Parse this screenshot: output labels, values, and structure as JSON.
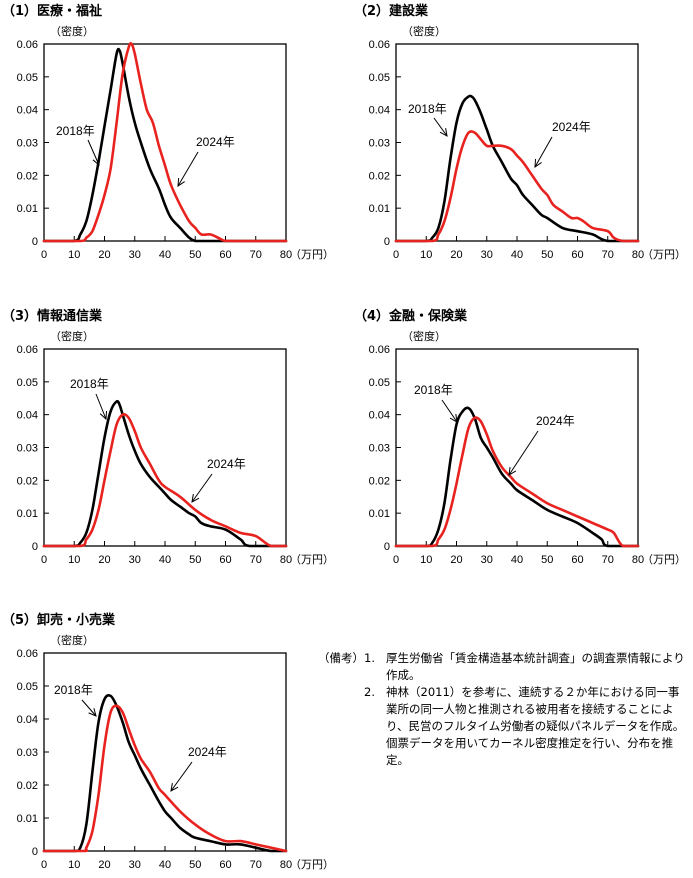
{
  "colors": {
    "y2018": "#000000",
    "y2024": "#e8231f"
  },
  "notes": {
    "label": "（備考）",
    "items": [
      {
        "num": "1.",
        "text": "厚生労働省「賃金構造基本統計調査」の調査票情報により作成。"
      },
      {
        "num": "2.",
        "text": "神林（2011）を参考に、連続する２か年における同一事業所の同一人物と推測される被用者を接続することにより、民営のフルタイム労働者の疑似パネルデータを作成。個票データを用いてカーネル密度推定を行い、分布を推定。"
      }
    ]
  },
  "chart_data": [
    {
      "type": "line",
      "title": "（1）医療・福祉",
      "ylabel": "（密度）",
      "xunit": "（万円）",
      "xlim": [
        0,
        80
      ],
      "ylim": [
        0,
        0.06
      ],
      "xticks": [
        "0",
        "10",
        "20",
        "30",
        "40",
        "50",
        "60",
        "70",
        "80"
      ],
      "yticks": [
        "0",
        "0.01",
        "0.02",
        "0.03",
        "0.04",
        "0.05",
        "0.06"
      ],
      "annotations": [
        "2018年",
        "2024年"
      ],
      "series": [
        {
          "name": "2018年",
          "x": [
            0,
            10,
            12,
            14,
            16,
            18,
            20,
            22,
            24,
            25,
            26,
            28,
            30,
            32,
            35,
            38,
            40,
            42,
            45,
            48,
            50,
            52,
            55,
            60,
            65,
            70,
            80
          ],
          "y": [
            0,
            0,
            0.002,
            0.006,
            0.014,
            0.024,
            0.035,
            0.046,
            0.057,
            0.058,
            0.054,
            0.044,
            0.036,
            0.03,
            0.022,
            0.016,
            0.011,
            0.007,
            0.004,
            0.001,
            0,
            0,
            0,
            0,
            0,
            0,
            0
          ]
        },
        {
          "name": "2024年",
          "x": [
            0,
            12,
            14,
            16,
            18,
            20,
            22,
            24,
            26,
            28,
            29,
            30,
            32,
            34,
            36,
            38,
            40,
            42,
            45,
            48,
            50,
            52,
            55,
            58,
            60,
            65,
            70,
            80
          ],
          "y": [
            0,
            0,
            0.001,
            0.003,
            0.008,
            0.014,
            0.022,
            0.036,
            0.051,
            0.059,
            0.06,
            0.057,
            0.048,
            0.04,
            0.036,
            0.029,
            0.023,
            0.017,
            0.011,
            0.006,
            0.004,
            0.002,
            0.002,
            0.0008,
            0,
            0,
            0,
            0
          ]
        }
      ]
    },
    {
      "type": "line",
      "title": "（2）建設業",
      "ylabel": "（密度）",
      "xunit": "（万円）",
      "xlim": [
        0,
        80
      ],
      "ylim": [
        0,
        0.06
      ],
      "xticks": [
        "0",
        "10",
        "20",
        "30",
        "40",
        "50",
        "60",
        "70",
        "80"
      ],
      "yticks": [
        "0",
        "0.01",
        "0.02",
        "0.03",
        "0.04",
        "0.05",
        "0.06"
      ],
      "annotations": [
        "2018年",
        "2024年"
      ],
      "series": [
        {
          "name": "2018年",
          "x": [
            0,
            10,
            12,
            14,
            16,
            18,
            20,
            22,
            24,
            25,
            26,
            28,
            30,
            32,
            35,
            38,
            40,
            42,
            45,
            48,
            50,
            55,
            60,
            65,
            70,
            80
          ],
          "y": [
            0,
            0,
            0.001,
            0.004,
            0.012,
            0.025,
            0.036,
            0.042,
            0.044,
            0.044,
            0.043,
            0.039,
            0.034,
            0.029,
            0.024,
            0.019,
            0.017,
            0.014,
            0.011,
            0.008,
            0.007,
            0.004,
            0.003,
            0.002,
            0,
            0
          ]
        },
        {
          "name": "2024年",
          "x": [
            0,
            12,
            14,
            16,
            18,
            20,
            22,
            24,
            26,
            28,
            30,
            32,
            35,
            38,
            40,
            42,
            45,
            48,
            50,
            52,
            55,
            58,
            60,
            62,
            65,
            70,
            72,
            75,
            80
          ],
          "y": [
            0,
            0,
            0.002,
            0.006,
            0.013,
            0.022,
            0.029,
            0.033,
            0.033,
            0.031,
            0.029,
            0.029,
            0.029,
            0.028,
            0.026,
            0.024,
            0.02,
            0.016,
            0.014,
            0.011,
            0.009,
            0.007,
            0.007,
            0.006,
            0.004,
            0.003,
            0.001,
            0,
            0
          ]
        }
      ]
    },
    {
      "type": "line",
      "title": "（3）情報通信業",
      "ylabel": "（密度）",
      "xunit": "（万円）",
      "xlim": [
        0,
        80
      ],
      "ylim": [
        0,
        0.06
      ],
      "xticks": [
        "0",
        "10",
        "20",
        "30",
        "40",
        "50",
        "60",
        "70",
        "80"
      ],
      "yticks": [
        "0",
        "0.01",
        "0.02",
        "0.03",
        "0.04",
        "0.05",
        "0.06"
      ],
      "annotations": [
        "2018年",
        "2024年"
      ],
      "series": [
        {
          "name": "2018年",
          "x": [
            0,
            10,
            12,
            14,
            16,
            18,
            20,
            22,
            24,
            25,
            26,
            28,
            30,
            32,
            35,
            38,
            40,
            42,
            45,
            48,
            50,
            52,
            55,
            60,
            65,
            68,
            80
          ],
          "y": [
            0,
            0,
            0.001,
            0.004,
            0.011,
            0.022,
            0.033,
            0.041,
            0.044,
            0.043,
            0.04,
            0.034,
            0.029,
            0.025,
            0.021,
            0.018,
            0.016,
            0.014,
            0.012,
            0.01,
            0.009,
            0.007,
            0.006,
            0.005,
            0.002,
            0,
            0
          ]
        },
        {
          "name": "2024年",
          "x": [
            0,
            12,
            14,
            16,
            18,
            20,
            22,
            24,
            26,
            28,
            30,
            32,
            35,
            38,
            40,
            45,
            50,
            55,
            60,
            65,
            70,
            75,
            80
          ],
          "y": [
            0,
            0,
            0.002,
            0.005,
            0.011,
            0.02,
            0.029,
            0.037,
            0.04,
            0.039,
            0.035,
            0.03,
            0.025,
            0.02,
            0.018,
            0.015,
            0.011,
            0.008,
            0.006,
            0.004,
            0.003,
            0,
            0
          ]
        }
      ]
    },
    {
      "type": "line",
      "title": "（4）金融・保険業",
      "ylabel": "（密度）",
      "xunit": "（万円）",
      "xlim": [
        0,
        80
      ],
      "ylim": [
        0,
        0.06
      ],
      "xticks": [
        "0",
        "10",
        "20",
        "30",
        "40",
        "50",
        "60",
        "70",
        "80"
      ],
      "yticks": [
        "0",
        "0.01",
        "0.02",
        "0.03",
        "0.04",
        "0.05",
        "0.06"
      ],
      "annotations": [
        "2018年",
        "2024年"
      ],
      "series": [
        {
          "name": "2018年",
          "x": [
            0,
            10,
            12,
            14,
            16,
            18,
            20,
            22,
            24,
            26,
            28,
            30,
            32,
            35,
            38,
            40,
            45,
            50,
            55,
            60,
            65,
            68,
            70,
            80
          ],
          "y": [
            0,
            0,
            0.001,
            0.005,
            0.013,
            0.026,
            0.037,
            0.041,
            0.042,
            0.039,
            0.033,
            0.03,
            0.027,
            0.022,
            0.019,
            0.017,
            0.014,
            0.011,
            0.009,
            0.007,
            0.004,
            0.002,
            0,
            0
          ]
        },
        {
          "name": "2024年",
          "x": [
            0,
            12,
            14,
            16,
            18,
            20,
            22,
            24,
            26,
            28,
            30,
            32,
            35,
            38,
            40,
            45,
            50,
            55,
            60,
            65,
            70,
            72,
            75,
            80
          ],
          "y": [
            0,
            0,
            0.002,
            0.005,
            0.011,
            0.019,
            0.028,
            0.036,
            0.039,
            0.038,
            0.034,
            0.029,
            0.024,
            0.021,
            0.019,
            0.016,
            0.013,
            0.011,
            0.009,
            0.007,
            0.005,
            0.004,
            0,
            0
          ]
        }
      ]
    },
    {
      "type": "line",
      "title": "（5）卸売・小売業",
      "ylabel": "（密度）",
      "xunit": "（万円）",
      "xlim": [
        0,
        80
      ],
      "ylim": [
        0,
        0.06
      ],
      "xticks": [
        "0",
        "10",
        "20",
        "30",
        "40",
        "50",
        "60",
        "70",
        "80"
      ],
      "yticks": [
        "0",
        "0.01",
        "0.02",
        "0.03",
        "0.04",
        "0.05",
        "0.06"
      ],
      "annotations": [
        "2018年",
        "2024年"
      ],
      "series": [
        {
          "name": "2018年",
          "x": [
            0,
            10,
            12,
            14,
            16,
            18,
            20,
            22,
            24,
            26,
            28,
            30,
            32,
            35,
            38,
            40,
            42,
            45,
            48,
            50,
            55,
            60,
            65,
            70,
            75,
            80
          ],
          "y": [
            0,
            0,
            0.001,
            0.008,
            0.024,
            0.039,
            0.046,
            0.047,
            0.044,
            0.039,
            0.033,
            0.029,
            0.025,
            0.02,
            0.015,
            0.012,
            0.01,
            0.007,
            0.005,
            0.004,
            0.003,
            0.002,
            0.002,
            0.001,
            0,
            0
          ]
        },
        {
          "name": "2024年",
          "x": [
            0,
            13,
            14,
            16,
            18,
            20,
            22,
            24,
            26,
            28,
            30,
            32,
            35,
            38,
            40,
            45,
            50,
            55,
            60,
            65,
            70,
            75,
            80
          ],
          "y": [
            0,
            0,
            0.001,
            0.006,
            0.017,
            0.032,
            0.042,
            0.044,
            0.042,
            0.037,
            0.032,
            0.028,
            0.024,
            0.019,
            0.017,
            0.012,
            0.008,
            0.005,
            0.003,
            0.003,
            0.002,
            0.001,
            0
          ]
        }
      ]
    }
  ]
}
